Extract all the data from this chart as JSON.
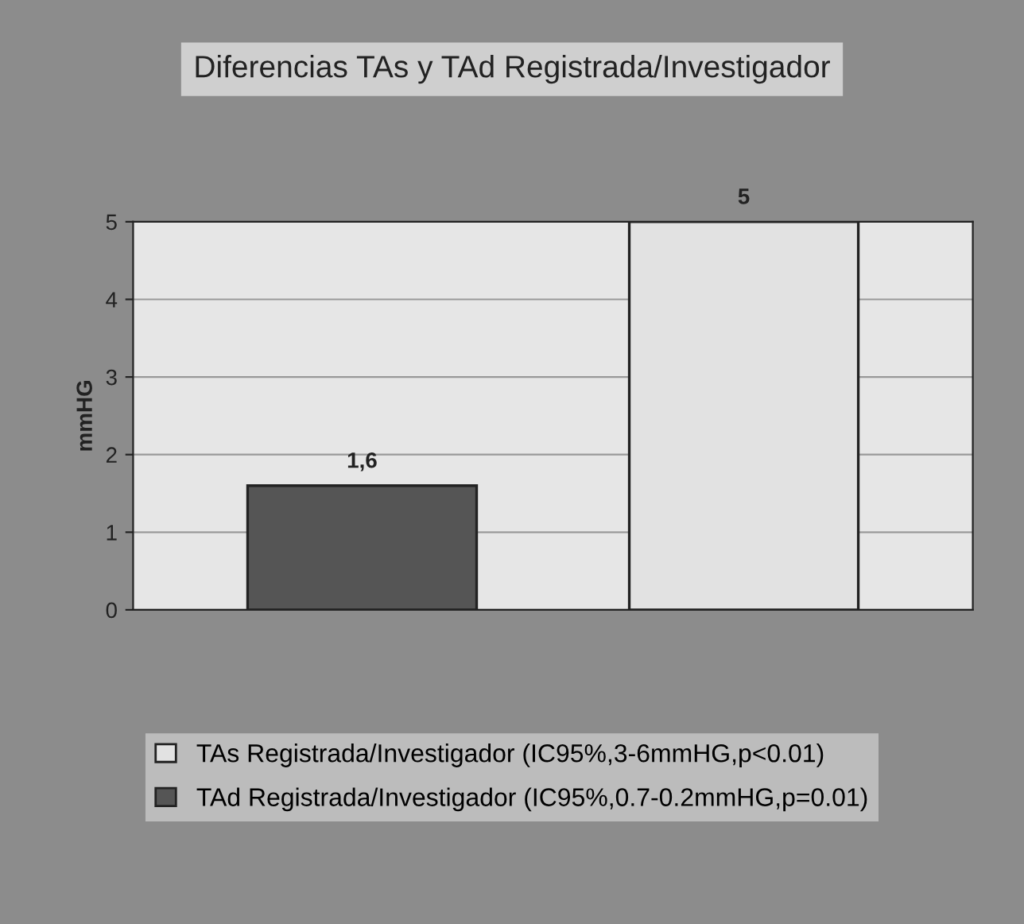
{
  "chart_data": {
    "type": "bar",
    "title": "Diferencias TAs y TAd Registrada/Investigador",
    "ylabel": "mmHG",
    "categories": [
      null,
      null
    ],
    "series": [
      {
        "name": "TAs Registrada/Investigador (IC95%,3-6mmHG,p<0.01)",
        "color": "#e2e2e2",
        "values": [
          null,
          5
        ],
        "value_labels": [
          null,
          "5"
        ]
      },
      {
        "name": "TAd Registrada/Investigador (IC95%,0.7-0.2mmHG,p=0.01)",
        "color": "#555555",
        "values": [
          1.6,
          null
        ],
        "value_labels": [
          "1,6",
          null
        ]
      }
    ],
    "ylim": [
      0,
      5
    ],
    "yticks": [
      0,
      1,
      2,
      3,
      4,
      5
    ],
    "grid": "y",
    "legend": "bottom"
  }
}
